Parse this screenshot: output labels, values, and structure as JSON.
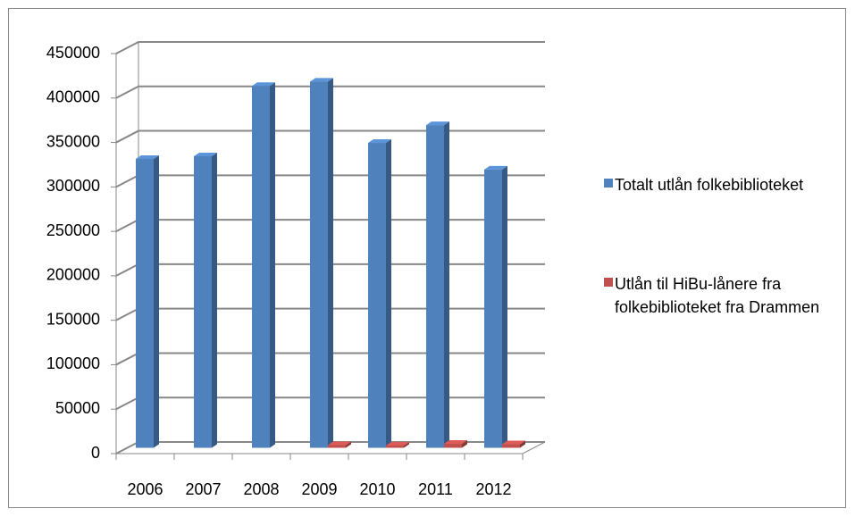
{
  "chart_data": {
    "type": "bar3d",
    "categories": [
      "2006",
      "2007",
      "2008",
      "2009",
      "2010",
      "2011",
      "2012"
    ],
    "series": [
      {
        "name": "Totalt utlån folkebiblioteket",
        "color": "#4f81bd",
        "values": [
          325000,
          328000,
          407000,
          412000,
          343000,
          363000,
          313000
        ]
      },
      {
        "name": "Utlån til HiBu-lånere fra folkebiblioteket fra Drammen",
        "color": "#c0504d",
        "values": [
          null,
          null,
          null,
          3000,
          2500,
          4500,
          4000
        ]
      }
    ],
    "ylim": [
      0,
      450000
    ],
    "yticks": [
      0,
      50000,
      100000,
      150000,
      200000,
      250000,
      300000,
      350000,
      400000,
      450000
    ],
    "grid": true,
    "legend": "right"
  }
}
